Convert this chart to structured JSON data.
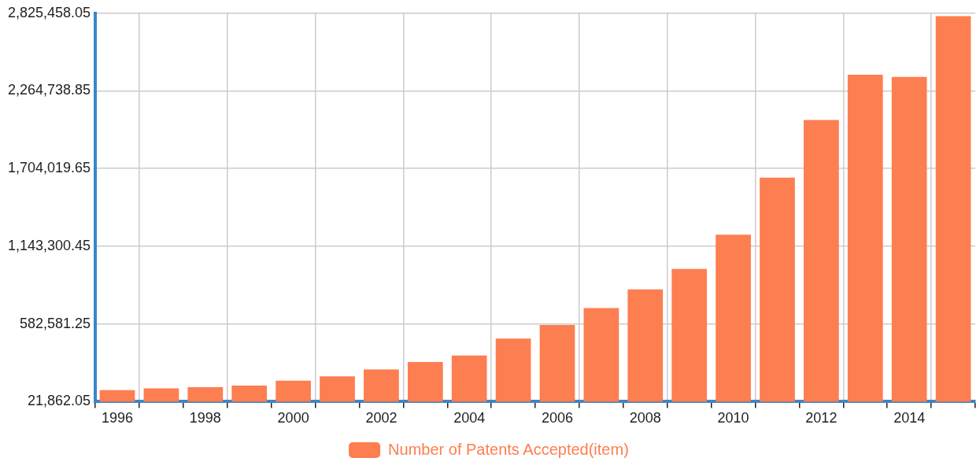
{
  "chart_data": {
    "type": "bar",
    "categories": [
      "1996",
      null,
      "1998",
      null,
      "2000",
      null,
      "2002",
      null,
      "2004",
      null,
      "2006",
      null,
      "2008",
      null,
      "2010",
      null,
      "2012",
      null,
      "2014",
      null
    ],
    "series": [
      {
        "name": "Number of Patents Accepted(item)",
        "color": "#fd7e50",
        "values": [
          105000,
          118000,
          126000,
          138000,
          173000,
          205000,
          254000,
          308000,
          355000,
          477000,
          575000,
          697000,
          832000,
          980000,
          1227000,
          1638000,
          2054000,
          2382000,
          2366000,
          2804000
        ]
      }
    ],
    "ylim": [
      21862.05,
      2825458.05
    ],
    "yticks": [
      {
        "value": 21862.05,
        "label": "21,862.05"
      },
      {
        "value": 582581.25,
        "label": "582,581.25"
      },
      {
        "value": 1143300.45,
        "label": "1,143,300.45"
      },
      {
        "value": 1704019.65,
        "label": "1,704,019.65"
      },
      {
        "value": 2264738.85,
        "label": "2,264,738.85"
      },
      {
        "value": 2825458.05,
        "label": "2,825,458.05"
      }
    ],
    "grid": true,
    "legend": "bottom"
  }
}
